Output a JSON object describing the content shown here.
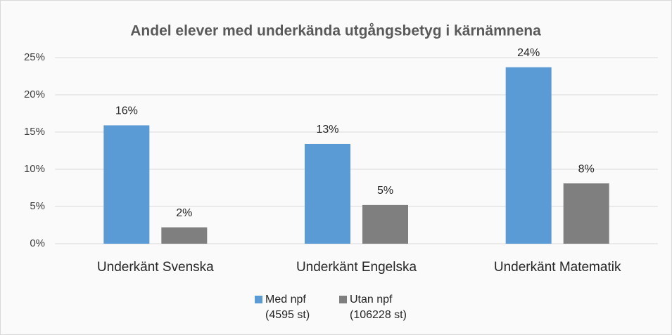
{
  "chart_data": {
    "type": "bar",
    "title": "Andel elever med underkända utgångsbetyg i kärnämnena",
    "categories": [
      "Underkänt Svenska",
      "Underkänt Engelska",
      "Underkänt Matematik"
    ],
    "series": [
      {
        "name": "Med npf (4595 st)",
        "color": "#5b9bd5",
        "values": [
          15.9,
          13.4,
          23.7
        ],
        "value_labels": [
          "16%",
          "13%",
          "24%"
        ]
      },
      {
        "name": "Utan npf (106228 st)",
        "color": "#7f7f7f",
        "values": [
          2.2,
          5.2,
          8.1
        ],
        "value_labels": [
          "2%",
          "5%",
          "8%"
        ]
      }
    ],
    "ylim": [
      0,
      25
    ],
    "yticks": [
      {
        "value": 0,
        "label": "0%"
      },
      {
        "value": 5,
        "label": "5%"
      },
      {
        "value": 10,
        "label": "10%"
      },
      {
        "value": 15,
        "label": "15%"
      },
      {
        "value": 20,
        "label": "20%"
      },
      {
        "value": 25,
        "label": "25%"
      }
    ],
    "grid": true,
    "legend": "bottom"
  }
}
